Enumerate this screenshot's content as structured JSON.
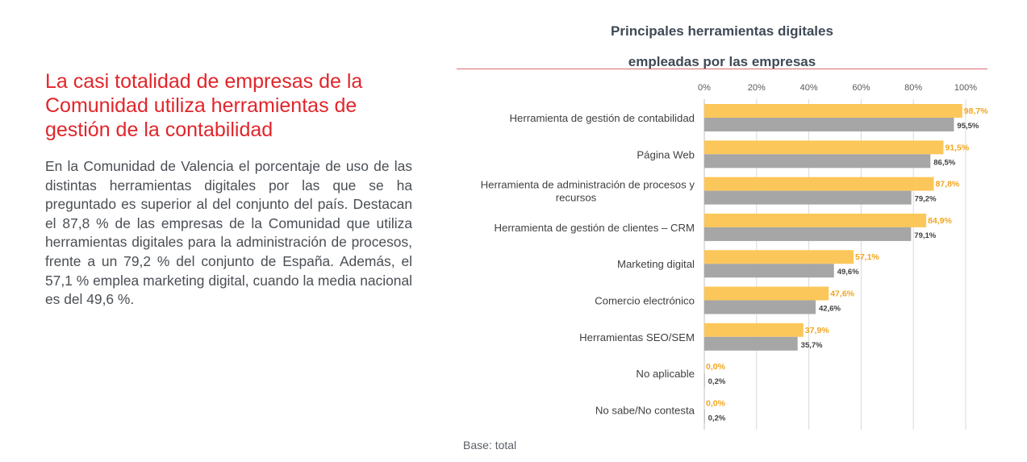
{
  "headline": "La casi totalidad de empresas de la Comunidad utiliza herramientas de gestión de la contabilidad",
  "body": "En la Comunidad de Valencia el porcentaje de uso de las distintas herramientas digitales por las que se ha preguntado es superior al del conjunto del país. Destacan el 87,8 % de las empresas de la Comunidad que utiliza herramientas digitales para la administración de procesos, frente a un 79,2 % del conjunto de España. Además, el 57,1 % emplea marketing digital, cuando la media nacional es del 49,6 %.",
  "footnote": "Base: total",
  "chart_data": {
    "type": "bar",
    "orientation": "horizontal",
    "title_lines": [
      "Principales herramientas digitales",
      "empleadas por las empresas"
    ],
    "categories": [
      "Herramienta de gestión de contabilidad",
      "Página Web",
      "Herramienta de administración de procesos y recursos",
      "Herramienta de gestión de clientes – CRM",
      "Marketing digital",
      "Comercio electrónico",
      "Herramientas SEO/SEM",
      "No aplicable",
      "No sabe/No contesta"
    ],
    "category_lines": [
      [
        "Herramienta de gestión de contabilidad"
      ],
      [
        "Página Web"
      ],
      [
        "Herramienta de administración de procesos y",
        "recursos"
      ],
      [
        "Herramienta de gestión de clientes – CRM"
      ],
      [
        "Marketing digital"
      ],
      [
        "Comercio electrónico"
      ],
      [
        "Herramientas SEO/SEM"
      ],
      [
        "No aplicable"
      ],
      [
        "No sabe/No contesta"
      ]
    ],
    "series": [
      {
        "color": "#fcc75a",
        "label_color": "#f2a51e",
        "values": [
          98.7,
          91.5,
          87.8,
          84.9,
          57.1,
          47.6,
          37.9,
          0.0,
          0.0
        ],
        "labels": [
          "98,7%",
          "91,5%",
          "87,8%",
          "84,9%",
          "57,1%",
          "47,6%",
          "37,9%",
          "0,0%",
          "0,0%"
        ]
      },
      {
        "color": "#a6a6a6",
        "label_color": "#404040",
        "values": [
          95.5,
          86.5,
          79.2,
          79.1,
          49.6,
          42.6,
          35.7,
          0.2,
          0.2
        ],
        "labels": [
          "95,5%",
          "86,5%",
          "79,2%",
          "79,1%",
          "49,6%",
          "42,6%",
          "35,7%",
          "0,2%",
          "0,2%"
        ]
      }
    ],
    "xlim": [
      0,
      100
    ],
    "xticks": [
      0,
      20,
      40,
      60,
      80,
      100
    ],
    "xtick_labels": [
      "0%",
      "20%",
      "40%",
      "60%",
      "80%",
      "100%"
    ],
    "axis_position": "top",
    "grid": true,
    "legend": "none"
  }
}
